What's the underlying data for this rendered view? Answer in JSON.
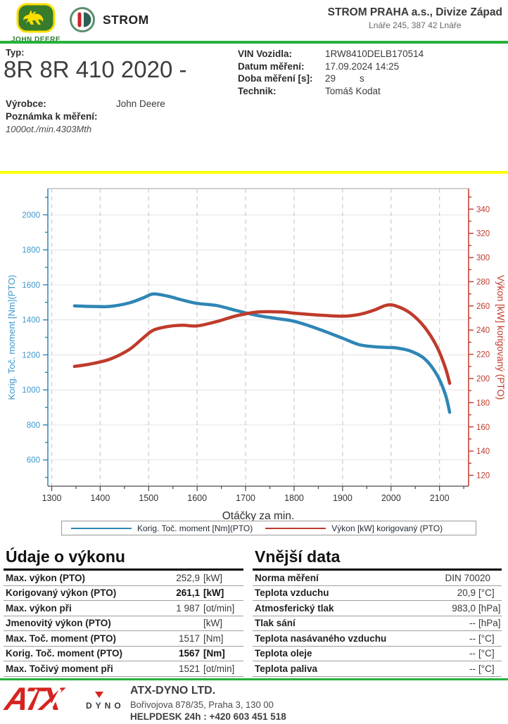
{
  "colors": {
    "accent_green": "#27b13a",
    "divider_yellow": "#ffff00",
    "torque_blue": "#2e86b5",
    "power_red": "#bf3b2b",
    "axis_blue_label": "#3d97cc",
    "axis_red": "#c0392b"
  },
  "header": {
    "john_deere_label": "JOHN DEERE",
    "strom_label": "STROM",
    "company_name": "STROM PRAHA a.s., Divize Západ",
    "company_address": "Lnáře 245, 387 42 Lnáře"
  },
  "info": {
    "type_label": "Typ:",
    "type_value": "8R 8R 410 2020 -",
    "manufacturer_label": "Výrobce:",
    "manufacturer_value": "John Deere",
    "note_label": "Poznámka k měření:",
    "note_value": "1000ot./min.4303Mth",
    "vin_label": "VIN Vozidla:",
    "vin_value": "1RW8410DELB170514",
    "date_label": "Datum měření:",
    "date_value": "17.09.2024 14:25",
    "duration_label": "Doba měření [s]:",
    "duration_value": "29",
    "duration_unit": "s",
    "technician_label": "Technik:",
    "technician_value": "Tomáš Kodat"
  },
  "chart_data": {
    "type": "line",
    "xlabel": "Otáčky za min.",
    "ylabel_left": "Korig. Toč. moment [Nm](PTO)",
    "ylabel_right": "Výkon [kW] korigovaný (PTO)",
    "x_range": [
      1292,
      2160
    ],
    "y_left_range": [
      450,
      2150
    ],
    "y_right_range": [
      111,
      357
    ],
    "x_ticks": [
      1300,
      1400,
      1500,
      1600,
      1700,
      1800,
      1900,
      2000,
      2100
    ],
    "y_left_ticks": [
      600,
      800,
      1000,
      1200,
      1400,
      1600,
      1800,
      2000
    ],
    "y_right_ticks": [
      120,
      140,
      160,
      180,
      200,
      220,
      240,
      260,
      280,
      300,
      320,
      340
    ],
    "grid": true,
    "legend_position": "bottom",
    "x": [
      1347,
      1380,
      1420,
      1460,
      1490,
      1510,
      1540,
      1570,
      1600,
      1640,
      1683,
      1726,
      1774,
      1800,
      1850,
      1900,
      1935,
      1965,
      1990,
      2010,
      2040,
      2070,
      2095,
      2112,
      2121
    ],
    "series": [
      {
        "name": "Korig. Toč. moment [Nm](PTO)",
        "axis": "left",
        "color": "#2e86b5",
        "values": [
          1480,
          1477,
          1477,
          1497,
          1527,
          1548,
          1535,
          1513,
          1494,
          1482,
          1452,
          1424,
          1404,
          1392,
          1348,
          1295,
          1258,
          1247,
          1243,
          1240,
          1222,
          1176,
          1085,
          975,
          872
        ]
      },
      {
        "name": "Výkon [kW] korigovaný (PTO)",
        "axis": "right",
        "color": "#bf3b2b",
        "values": [
          210,
          212,
          216,
          224,
          234,
          240,
          243,
          244,
          243.5,
          247,
          252,
          255,
          255,
          254,
          252.5,
          251.5,
          253,
          256.5,
          260.5,
          260,
          254,
          242,
          226,
          209,
          196
        ]
      }
    ]
  },
  "power_table": {
    "title": "Údaje o výkonu",
    "rows": [
      {
        "label": "Max. výkon (PTO)",
        "value": "252,9",
        "unit": "[kW]",
        "bold": false
      },
      {
        "label": "Korigovaný výkon (PTO)",
        "value": "261,1",
        "unit": "[kW]",
        "bold": true
      },
      {
        "label": "Max. výkon při",
        "value": "1 987",
        "unit": "[ot/min]",
        "bold": false
      },
      {
        "label": "Jmenovitý výkon (PTO)",
        "value": "",
        "unit": "[kW]",
        "bold": false
      },
      {
        "label": "Max. Toč. moment (PTO)",
        "value": "1517",
        "unit": "[Nm]",
        "bold": false
      },
      {
        "label": "Korig. Toč. moment (PTO)",
        "value": "1567",
        "unit": "[Nm]",
        "bold": true
      },
      {
        "label": "Max. Točivý moment při",
        "value": "1521",
        "unit": "[ot/min]",
        "bold": false
      }
    ]
  },
  "external_table": {
    "title": "Vnější data",
    "rows": [
      {
        "label": "Norma měření",
        "value": "DIN 70020",
        "unit": "",
        "bold": false
      },
      {
        "label": "Teplota vzduchu",
        "value": "20,9",
        "unit": "[°C]",
        "bold": false
      },
      {
        "label": "Atmosferický tlak",
        "value": "983,0",
        "unit": "[hPa]",
        "bold": false
      },
      {
        "label": "Tlak sání",
        "value": "--",
        "unit": "[hPa]",
        "bold": false
      },
      {
        "label": "Teplota nasávaného vzduchu",
        "value": "--",
        "unit": "[°C]",
        "bold": false
      },
      {
        "label": "Teplota oleje",
        "value": "--",
        "unit": "[°C]",
        "bold": false
      },
      {
        "label": "Teplota paliva",
        "value": "--",
        "unit": "[°C]",
        "bold": false
      }
    ]
  },
  "footer": {
    "logo_atx": "ATX",
    "logo_dyno": "DYNO",
    "company": "ATX-DYNO LTD.",
    "address": "Bořivojova 878/35, Praha 3, 130 00",
    "helpdesk": "HELPDESK 24h : +420 603 451 518"
  }
}
